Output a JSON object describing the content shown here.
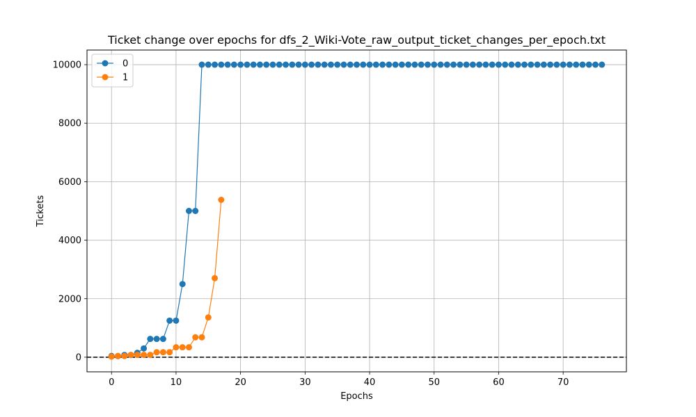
{
  "chart_data": {
    "type": "line",
    "title": "Ticket change over epochs for dfs_2_Wiki-Vote_raw_output_ticket_changes_per_epoch.txt",
    "xlabel": "Epochs",
    "ylabel": "Tickets",
    "xlim": [
      -3.8,
      79.8
    ],
    "ylim": [
      -500,
      10500
    ],
    "xticks": [
      0,
      10,
      20,
      30,
      40,
      50,
      60,
      70
    ],
    "yticks": [
      0,
      2000,
      4000,
      6000,
      8000,
      10000
    ],
    "grid": true,
    "legend_position": "top-left",
    "reference_line": {
      "y": 0,
      "style": "dashed",
      "color": "#000000"
    },
    "series": [
      {
        "name": "0",
        "color": "#1f77b4",
        "marker": "circle",
        "x": [
          0,
          1,
          2,
          3,
          4,
          5,
          6,
          7,
          8,
          9,
          10,
          11,
          12,
          13,
          14,
          15,
          16,
          17,
          18,
          19,
          20,
          21,
          22,
          23,
          24,
          25,
          26,
          27,
          28,
          29,
          30,
          31,
          32,
          33,
          34,
          35,
          36,
          37,
          38,
          39,
          40,
          41,
          42,
          43,
          44,
          45,
          46,
          47,
          48,
          49,
          50,
          51,
          52,
          53,
          54,
          55,
          56,
          57,
          58,
          59,
          60,
          61,
          62,
          63,
          64,
          65,
          66,
          67,
          68,
          69,
          70,
          71,
          72,
          73,
          74,
          75,
          76
        ],
        "y": [
          40,
          40,
          75,
          75,
          150,
          300,
          625,
          625,
          625,
          1250,
          1250,
          2500,
          5000,
          5000,
          10000,
          10000,
          10000,
          10000,
          10000,
          10000,
          10000,
          10000,
          10000,
          10000,
          10000,
          10000,
          10000,
          10000,
          10000,
          10000,
          10000,
          10000,
          10000,
          10000,
          10000,
          10000,
          10000,
          10000,
          10000,
          10000,
          10000,
          10000,
          10000,
          10000,
          10000,
          10000,
          10000,
          10000,
          10000,
          10000,
          10000,
          10000,
          10000,
          10000,
          10000,
          10000,
          10000,
          10000,
          10000,
          10000,
          10000,
          10000,
          10000,
          10000,
          10000,
          10000,
          10000,
          10000,
          10000,
          10000,
          10000,
          10000,
          10000,
          10000,
          10000,
          10000,
          10000
        ]
      },
      {
        "name": "1",
        "color": "#ff7f0e",
        "marker": "circle",
        "x": [
          0,
          1,
          2,
          3,
          4,
          5,
          6,
          7,
          8,
          9,
          10,
          11,
          12,
          13,
          14,
          15,
          16,
          17
        ],
        "y": [
          20,
          40,
          40,
          80,
          80,
          80,
          80,
          170,
          170,
          170,
          340,
          340,
          340,
          680,
          680,
          1360,
          2700,
          5380
        ]
      }
    ]
  }
}
